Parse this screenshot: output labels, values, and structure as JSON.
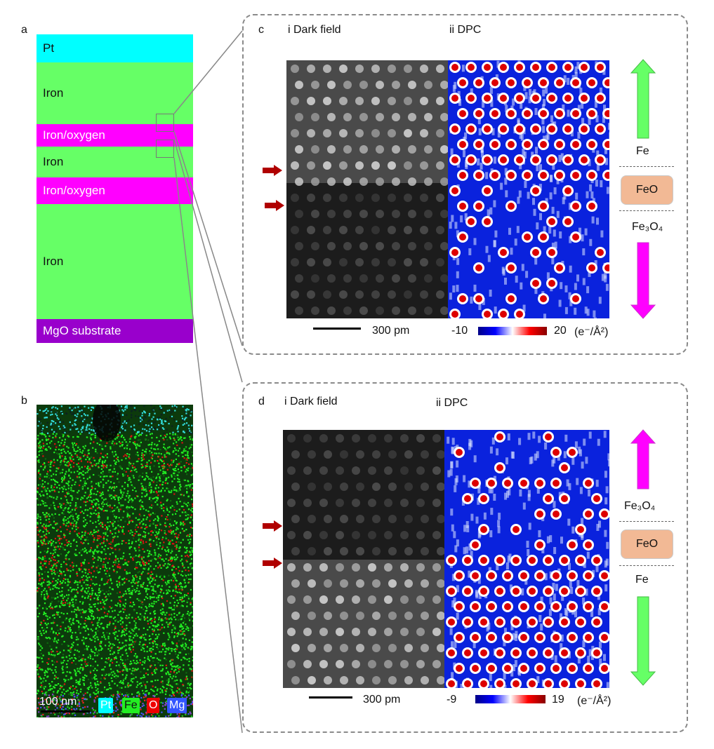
{
  "panel_a": {
    "label": "a",
    "layers": [
      {
        "name": "Pt",
        "color": "#00ffff"
      },
      {
        "name": "Iron",
        "color": "#66ff66"
      },
      {
        "name": "Iron/oxygen",
        "color": "#ff00ff"
      },
      {
        "name": "Iron",
        "color": "#66ff66"
      },
      {
        "name": "Iron/oxygen",
        "color": "#ff00ff"
      },
      {
        "name": "Iron",
        "color": "#66ff66"
      },
      {
        "name": "MgO substrate",
        "color": "#9900cc"
      }
    ]
  },
  "panel_b": {
    "label": "b",
    "scalebar": "100 nm",
    "legend": [
      {
        "name": "Pt",
        "color": "#00ffff"
      },
      {
        "name": "Fe",
        "color": "#22ee22"
      },
      {
        "name": "O",
        "color": "#ee0000"
      },
      {
        "name": "Mg",
        "color": "#3355ff"
      }
    ]
  },
  "panel_c": {
    "label": "c",
    "sub_i": "i Dark field",
    "sub_ii": "ii DPC",
    "scalebar": "300 pm",
    "cbar_min": "-10",
    "cbar_max": "20",
    "cbar_unit": "(e⁻/Å²)",
    "top_label": "Fe",
    "middle_label": "FeO",
    "bottom_label": "Fe₃O₄",
    "top_arrow_color": "#66ff66",
    "bottom_arrow_color": "#ff00ff"
  },
  "panel_d": {
    "label": "d",
    "sub_i": "i Dark field",
    "sub_ii": "ii DPC",
    "scalebar": "300 pm",
    "cbar_min": "-9",
    "cbar_max": "19",
    "cbar_unit": "(e⁻/Å²)",
    "top_label": "Fe₃O₄",
    "middle_label": "FeO",
    "bottom_label": "Fe",
    "top_arrow_color": "#ff00ff",
    "bottom_arrow_color": "#66ff66"
  },
  "colors": {
    "arrow_red": "#b00000",
    "dpc_low": "#0000cc",
    "dpc_mid": "#ffffff",
    "dpc_high": "#cc0000"
  }
}
